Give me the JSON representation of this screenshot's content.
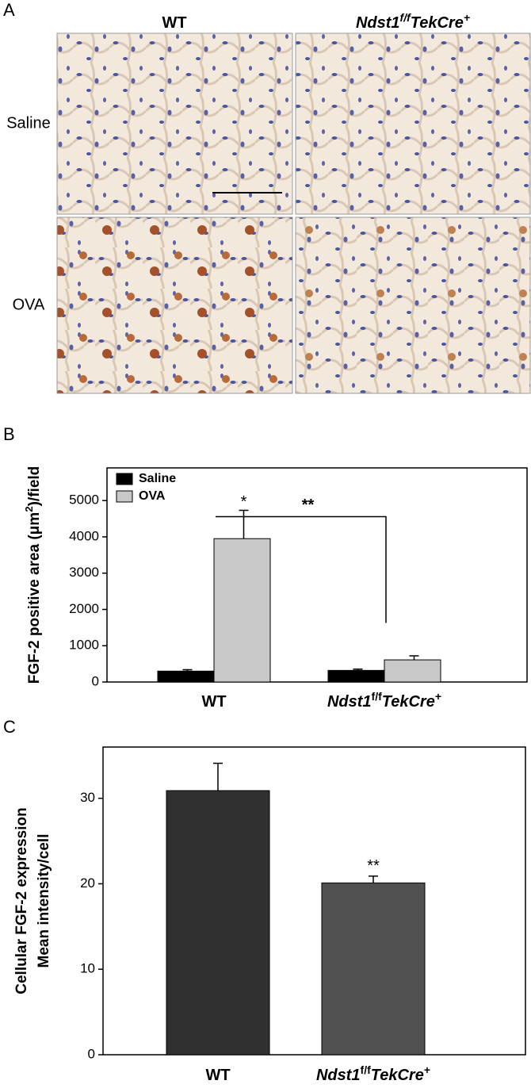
{
  "figure_a": {
    "panel_label": "A",
    "columns": [
      [
        {
          "text": "WT"
        }
      ],
      [
        {
          "text": "Ndst1",
          "italic": true
        },
        {
          "text": "f/f",
          "italic": true,
          "sup": true
        },
        {
          "text": "TekCre",
          "italic": true
        },
        {
          "text": "+",
          "italic": true,
          "sup": true
        }
      ]
    ],
    "rows": [
      "Saline",
      "OVA"
    ]
  },
  "chart_data": [
    {
      "type": "bar",
      "panel_label": "B",
      "ylabel": [
        {
          "text": "FGF-2 positive area ("
        },
        {
          "text": "μm"
        },
        {
          "text": "2",
          "sup": true
        },
        {
          "text": ")/field"
        }
      ],
      "categories": [
        [
          {
            "text": "WT"
          }
        ],
        [
          {
            "text": "Ndst1",
            "italic": true
          },
          {
            "text": "f/f",
            "sup": true
          },
          {
            "text": "TekCre",
            "italic": true
          },
          {
            "text": "+",
            "sup": true
          }
        ]
      ],
      "series": [
        {
          "name": "Saline",
          "color": "#000000",
          "values": [
            300,
            320
          ],
          "errors": [
            40,
            35
          ]
        },
        {
          "name": "OVA",
          "color": "#c8c8c8",
          "values": [
            3950,
            610
          ],
          "errors": [
            780,
            110
          ]
        }
      ],
      "ylim": [
        0,
        5900
      ],
      "yticks": [
        0,
        1000,
        2000,
        3000,
        4000,
        5000
      ],
      "legend": "upper left",
      "annotations": [
        {
          "text": "*"
        },
        {
          "text": "**"
        }
      ]
    },
    {
      "type": "bar",
      "panel_label": "C",
      "ylabel_lines": [
        "Cellular FGF-2 expression",
        "Mean intensity/cell"
      ],
      "categories": [
        [
          {
            "text": "WT"
          }
        ],
        [
          {
            "text": "Ndst1",
            "italic": true
          },
          {
            "text": "f/f",
            "sup": true
          },
          {
            "text": "TekCre",
            "italic": true
          },
          {
            "text": "+",
            "sup": true
          }
        ]
      ],
      "colors": [
        "#303030",
        "#505050"
      ],
      "values": [
        30.9,
        20.1
      ],
      "errors": [
        3.2,
        0.8
      ],
      "ylim": [
        0,
        36
      ],
      "yticks": [
        0,
        10,
        20,
        30
      ],
      "annotations": [
        {
          "text": "**"
        }
      ]
    }
  ]
}
